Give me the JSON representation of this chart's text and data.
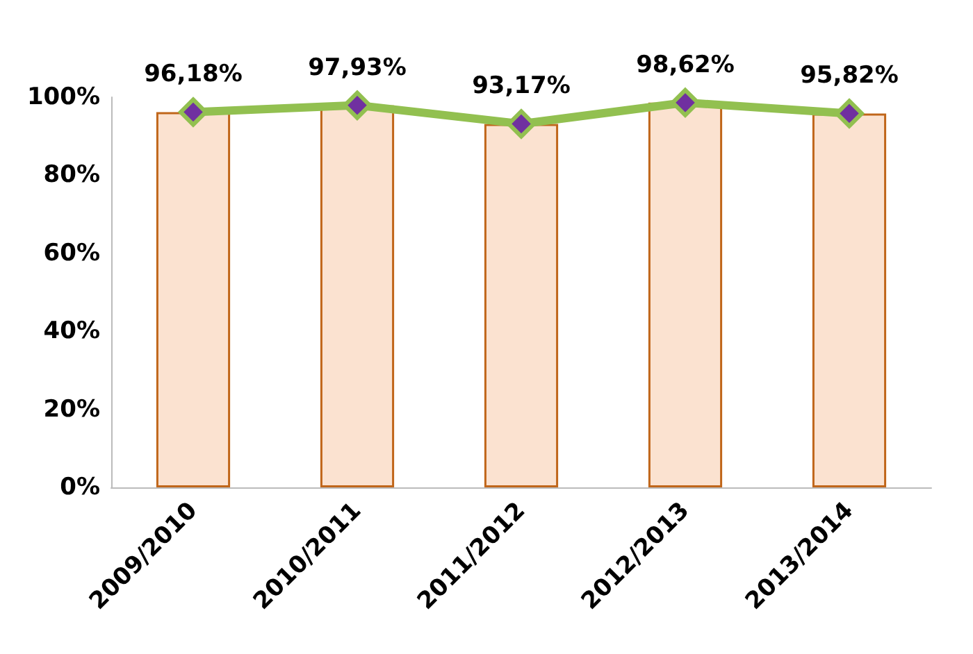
{
  "chart_data": {
    "type": "bar",
    "categories": [
      "2009/2010",
      "2010/2011",
      "2011/2012",
      "2012/2013",
      "2013/2014"
    ],
    "series": [
      {
        "color": "#fbe2d0",
        "values": [
          96.18,
          97.93,
          93.17,
          98.62,
          95.82
        ]
      },
      {
        "type": "line",
        "color": "#92c050",
        "values": [
          96.18,
          97.93,
          93.17,
          98.62,
          95.82
        ],
        "value_labels": [
          "96,18%",
          "97,93%",
          "93,17%",
          "98,62%",
          "95,82%"
        ]
      }
    ],
    "marker": "diamond",
    "line_style": "solid",
    "ylim": [
      0,
      100
    ],
    "yticks": [
      {
        "value": 0,
        "label": "0%"
      },
      {
        "value": 20,
        "label": "20%"
      },
      {
        "value": 40,
        "label": "40%"
      },
      {
        "value": 60,
        "label": "60%"
      },
      {
        "value": 80,
        "label": "80%"
      },
      {
        "value": 100,
        "label": "100%"
      }
    ],
    "grid": false
  }
}
